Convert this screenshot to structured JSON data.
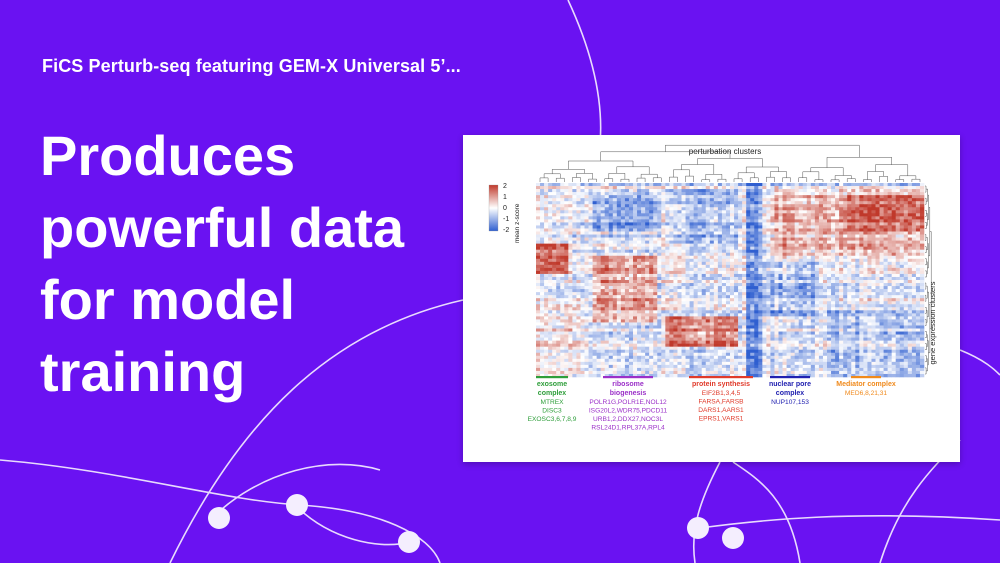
{
  "header": {
    "subtitle": "FiCS Perturb-seq featuring GEM-X Universal 5’..."
  },
  "headline": {
    "lines": [
      "Produces",
      "powerful data",
      "for model",
      "training"
    ]
  },
  "figure": {
    "top_label": "perturbation clusters",
    "side_label": "gene expression clusters",
    "colorbar": {
      "title": "mean z-score",
      "ticks": [
        "2",
        "1",
        "0",
        "-1",
        "-2"
      ],
      "colors": [
        "#c0392b",
        "#ffffff",
        "#2f5fd0"
      ]
    },
    "groups": [
      {
        "name_lines": [
          "exosome",
          "complex"
        ],
        "genes": [
          "MTREX",
          "DISC3",
          "EXOSC3,6,7,8,9"
        ],
        "color": "#2e9e3a"
      },
      {
        "name_lines": [
          "ribosome",
          "biogenesis"
        ],
        "genes": [
          "POLR1G,POLR1E,NOL12",
          "ISG20L2,WDR75,PDCD11",
          "URB1,2,DDX27,NOC3L",
          "RSL24D1,RPL37A,RPL4"
        ],
        "color": "#9b30c8"
      },
      {
        "name_lines": [
          "protein synthesis"
        ],
        "genes": [
          "EIF2B1,3,4,5",
          "FARSA,FARSB",
          "DARS1,AARS1",
          "EPRS1,VARS1"
        ],
        "color": "#e03a2a"
      },
      {
        "name_lines": [
          "nuclear pore",
          "complex"
        ],
        "genes": [
          "NUP107,153"
        ],
        "color": "#2020b0"
      },
      {
        "name_lines": [
          "Mediator complex"
        ],
        "genes": [
          "MED6,8,21,31"
        ],
        "color": "#f08a1c"
      }
    ],
    "colors": {
      "background": "#6a12f2",
      "high": "#c0392b",
      "low": "#2f5fd0"
    }
  }
}
